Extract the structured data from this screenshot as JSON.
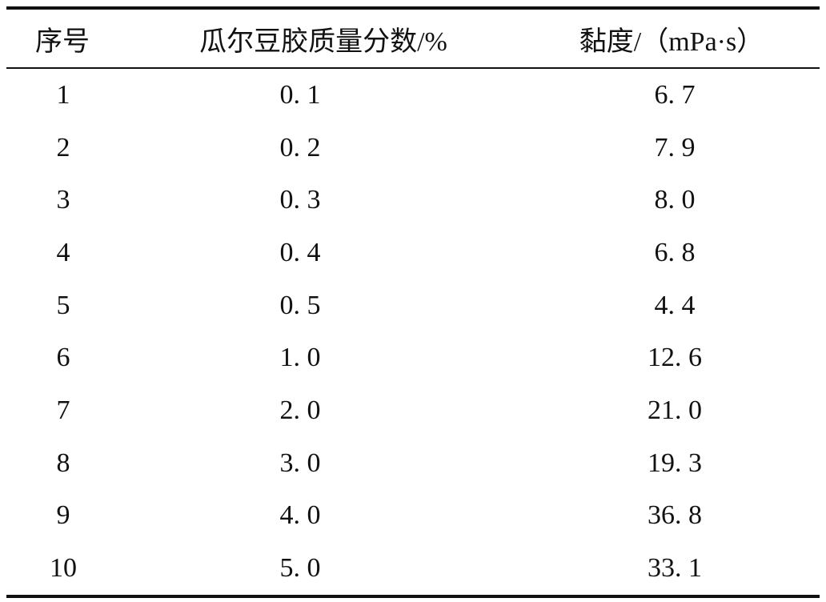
{
  "table": {
    "headers": {
      "index": "序号",
      "concentration": "瓜尔豆胶质量分数/%",
      "viscosity": "黏度/（mPa·s）"
    },
    "rows": [
      {
        "index": "1",
        "concentration": "0. 1",
        "viscosity": "6. 7"
      },
      {
        "index": "2",
        "concentration": "0. 2",
        "viscosity": "7. 9"
      },
      {
        "index": "3",
        "concentration": "0. 3",
        "viscosity": "8. 0"
      },
      {
        "index": "4",
        "concentration": "0. 4",
        "viscosity": "6. 8"
      },
      {
        "index": "5",
        "concentration": "0. 5",
        "viscosity": "4. 4"
      },
      {
        "index": "6",
        "concentration": "1. 0",
        "viscosity": "12. 6"
      },
      {
        "index": "7",
        "concentration": "2. 0",
        "viscosity": "21. 0"
      },
      {
        "index": "8",
        "concentration": "3. 0",
        "viscosity": "19. 3"
      },
      {
        "index": "9",
        "concentration": "4. 0",
        "viscosity": "36. 8"
      },
      {
        "index": "10",
        "concentration": "5. 0",
        "viscosity": "33. 1"
      }
    ]
  }
}
